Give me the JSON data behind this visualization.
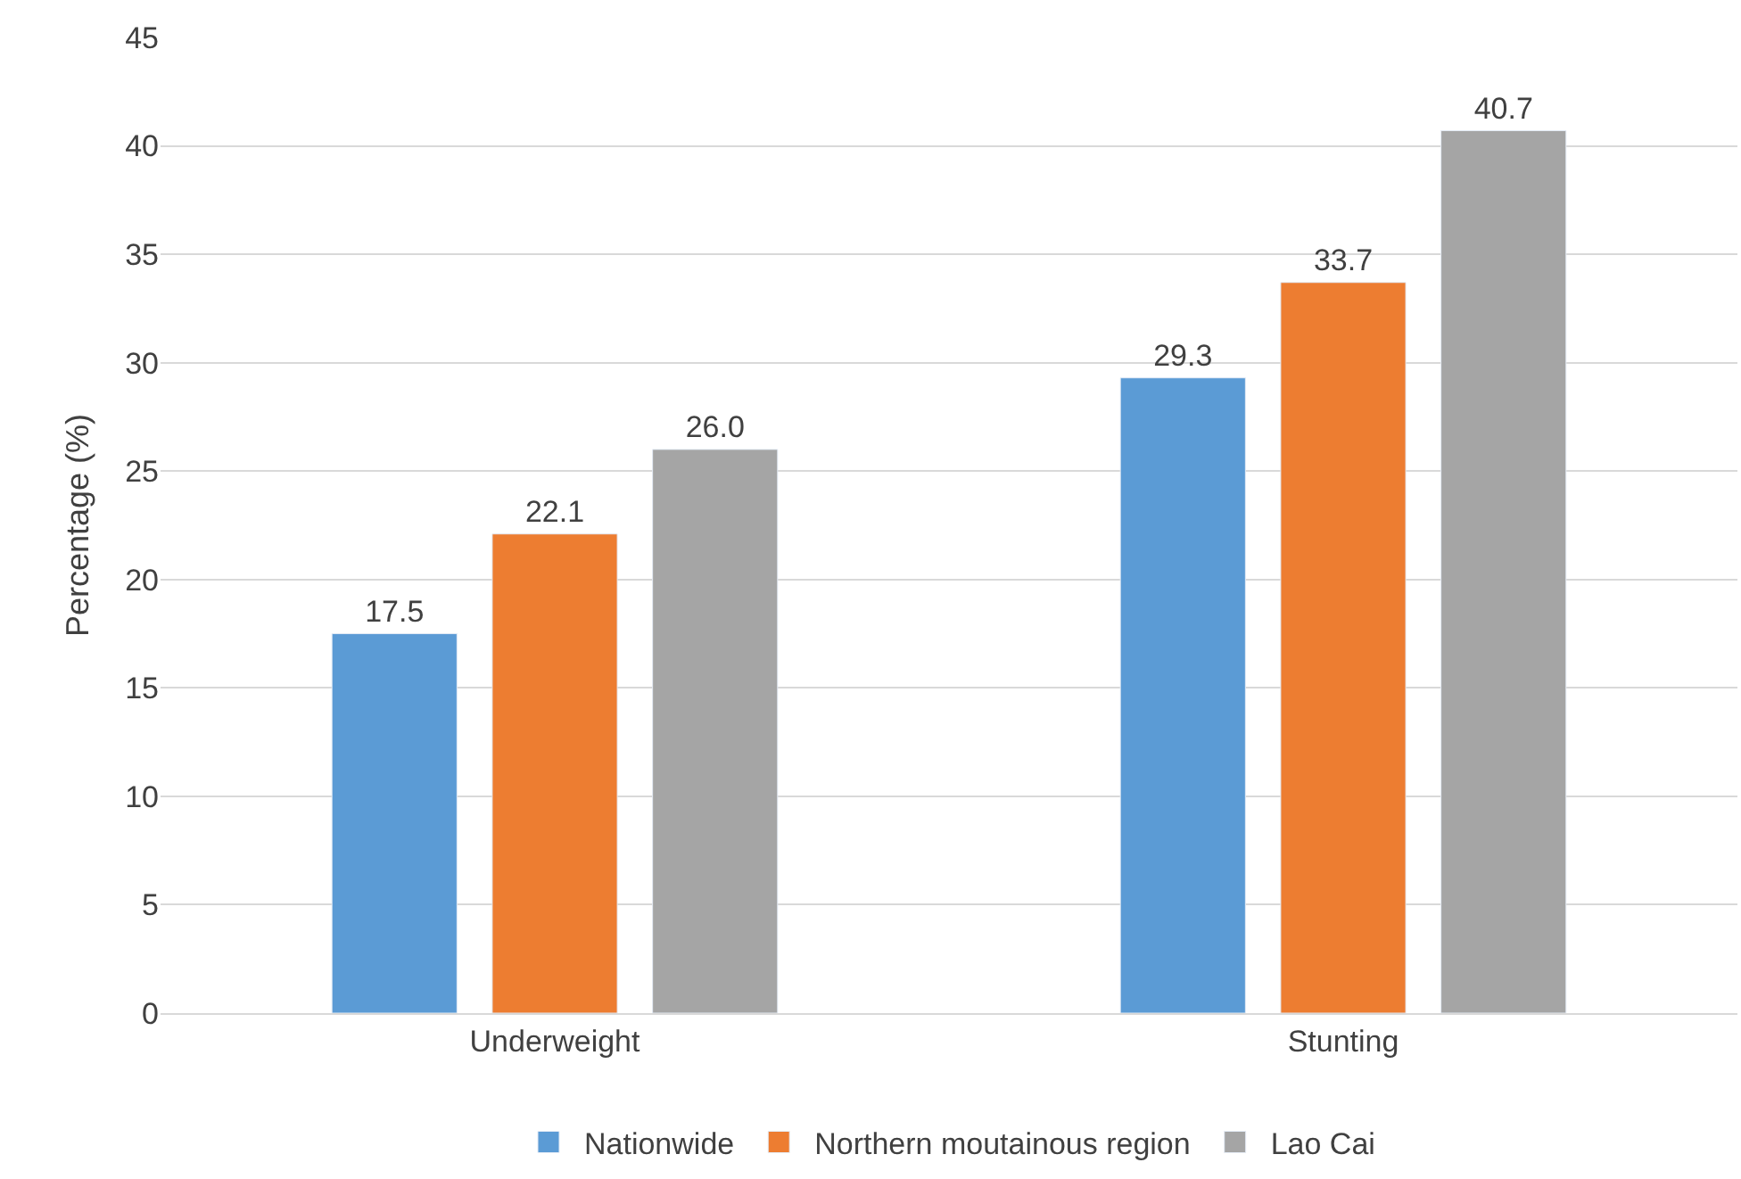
{
  "chart_data": {
    "type": "bar",
    "ylabel": "Percentage (%)",
    "categories": [
      "Underweight",
      "Stunting"
    ],
    "series": [
      {
        "name": "Nationwide",
        "color": "#5b9bd5",
        "values": [
          17.5,
          29.3
        ],
        "value_labels": [
          "17.5",
          "29.3"
        ]
      },
      {
        "name": "Northern moutainous region",
        "color": "#ed7d31",
        "values": [
          22.1,
          33.7
        ],
        "value_labels": [
          "22.1",
          "33.7"
        ]
      },
      {
        "name": "Lao Cai",
        "color": "#a5a5a5",
        "values": [
          26.0,
          40.7
        ],
        "value_labels": [
          "26.0",
          "40.7"
        ]
      }
    ],
    "ylim": [
      0,
      45
    ],
    "yticks": [
      0,
      5,
      10,
      15,
      20,
      25,
      30,
      35,
      40,
      45
    ],
    "grid": "y",
    "legend": "bottom"
  }
}
